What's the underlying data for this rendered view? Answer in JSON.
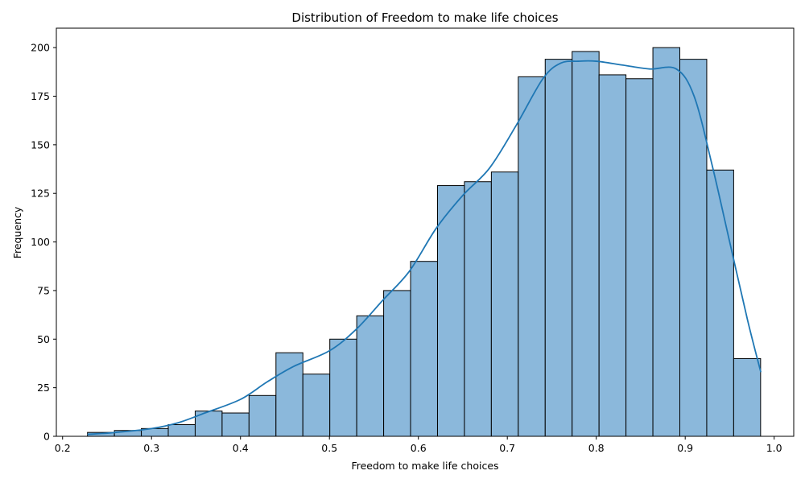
{
  "chart_data": {
    "type": "bar",
    "title": "Distribution of Freedom to make life choices",
    "xlabel": "Freedom to make life choices",
    "ylabel": "Frequency",
    "xlim": [
      0.193,
      1.022
    ],
    "ylim": [
      0,
      210
    ],
    "x_ticks": [
      0.2,
      0.3,
      0.4,
      0.5,
      0.6,
      0.7,
      0.8,
      0.9,
      1.0
    ],
    "x_tick_labels": [
      "0.2",
      "0.3",
      "0.4",
      "0.5",
      "0.6",
      "0.7",
      "0.8",
      "0.9",
      "1.0"
    ],
    "y_ticks": [
      0,
      25,
      50,
      75,
      100,
      125,
      150,
      175,
      200
    ],
    "y_tick_labels": [
      "0",
      "25",
      "50",
      "75",
      "100",
      "125",
      "150",
      "175",
      "200"
    ],
    "bin_start": 0.228,
    "bin_width": 0.03027,
    "values": [
      2,
      3,
      4,
      6,
      13,
      12,
      21,
      43,
      32,
      50,
      62,
      75,
      90,
      129,
      131,
      136,
      185,
      194,
      198,
      186,
      184,
      200,
      194,
      137,
      40
    ],
    "kde": {
      "x": [
        0.228,
        0.26,
        0.3,
        0.33,
        0.36,
        0.4,
        0.43,
        0.46,
        0.5,
        0.53,
        0.56,
        0.59,
        0.62,
        0.65,
        0.68,
        0.71,
        0.74,
        0.76,
        0.78,
        0.8,
        0.83,
        0.86,
        0.89,
        0.91,
        0.93,
        0.95,
        0.97,
        0.985
      ],
      "y": [
        1,
        2,
        4,
        7,
        12,
        19,
        28,
        36,
        44,
        55,
        70,
        85,
        107,
        124,
        138,
        160,
        184,
        192,
        193,
        193,
        191,
        189,
        189,
        175,
        140,
        100,
        60,
        33
      ]
    },
    "bar_fill": "#8bb8db",
    "bar_edge": "#000000",
    "kde_color": "#1f77b4",
    "grid": false,
    "legend": false
  }
}
